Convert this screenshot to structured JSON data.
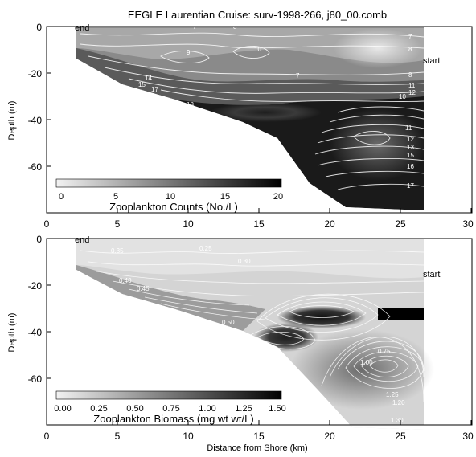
{
  "title": "EEGLE Laurentian Cruise: surv-1998-266, j80_00.comb",
  "xlabel": "Distance from Shore (km)",
  "colors": {
    "background": "#ffffff",
    "low": "#f2f2f2",
    "high": "#000000",
    "contour_line": "#ffffff"
  },
  "chart_data": [
    {
      "type": "heatmap",
      "ylabel": "Depth (m)",
      "xlim": [
        0,
        30
      ],
      "ylim": [
        -60,
        0
      ],
      "x_ticks": [
        "0",
        "5",
        "10",
        "15",
        "20",
        "25",
        "30"
      ],
      "y_ticks": [
        "0",
        "-20",
        "-40",
        "-60"
      ],
      "colorbar": {
        "title": "Zooplankton Counts (No./L)",
        "ticks": [
          "0",
          "5",
          "10",
          "15",
          "20"
        ],
        "range": [
          0,
          20
        ]
      },
      "annotations": {
        "end": "end",
        "start": "start"
      },
      "bottom_profile": [
        [
          2,
          -14
        ],
        [
          5,
          -22
        ],
        [
          9,
          -28
        ],
        [
          13,
          -35
        ],
        [
          16,
          -45
        ],
        [
          19,
          -53
        ],
        [
          22,
          -57
        ],
        [
          26.5,
          -59
        ]
      ],
      "contour_labels": [
        "7",
        "8",
        "10",
        "9",
        "7",
        "8",
        "7",
        "11",
        "12",
        "15",
        "14",
        "17",
        "18",
        "8",
        "10",
        "11",
        "12",
        "13",
        "15",
        "16",
        "17"
      ]
    },
    {
      "type": "heatmap",
      "ylabel": "Depth (m)",
      "xlim": [
        0,
        30
      ],
      "ylim": [
        -60,
        0
      ],
      "x_ticks": [
        "0",
        "5",
        "10",
        "15",
        "20",
        "25",
        "30"
      ],
      "y_ticks": [
        "0",
        "-20",
        "-40",
        "-60"
      ],
      "colorbar": {
        "title": "Zooplankton Biomass (mg wt wt/L)",
        "ticks": [
          "0.00",
          "0.25",
          "0.50",
          "0.75",
          "1.00",
          "1.25",
          "1.50"
        ],
        "range": [
          0,
          1.5
        ]
      },
      "annotations": {
        "end": "end",
        "start": "start"
      },
      "bottom_profile": [
        [
          2,
          -14
        ],
        [
          5,
          -22
        ],
        [
          9,
          -28
        ],
        [
          13,
          -35
        ],
        [
          16,
          -45
        ],
        [
          19,
          -53
        ],
        [
          22,
          -57
        ],
        [
          26.5,
          -59
        ]
      ],
      "contour_labels": [
        "0.35",
        "0.25",
        "0.30",
        "0.40",
        "0.45",
        "0.50",
        "0.75",
        "1.00",
        "1.25",
        "1.20",
        "1.30"
      ]
    }
  ]
}
